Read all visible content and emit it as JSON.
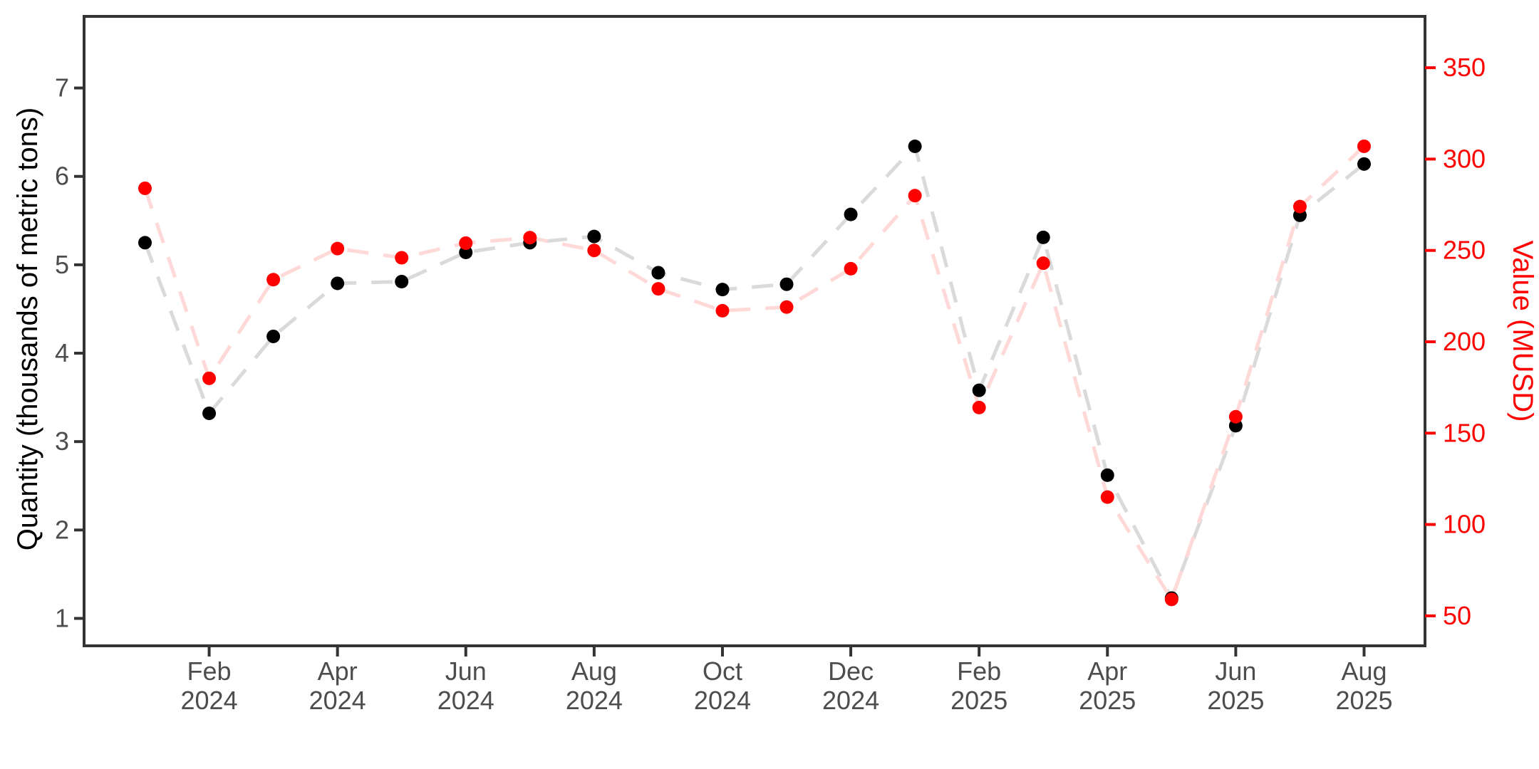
{
  "figure": {
    "background": "#FFFFFF",
    "panel_border_color": "#333333",
    "tick_mark_color": "#333333",
    "tick_label_color": "#4D4D4D"
  },
  "chart_data": {
    "type": "scatter",
    "title": "",
    "x": [
      "Jan 2024",
      "Feb 2024",
      "Mar 2024",
      "Apr 2024",
      "May 2024",
      "Jun 2024",
      "Jul 2024",
      "Aug 2024",
      "Sep 2024",
      "Oct 2024",
      "Nov 2024",
      "Dec 2024",
      "Jan 2025",
      "Feb 2025",
      "Mar 2025",
      "Apr 2025",
      "May 2025",
      "Jun 2025",
      "Jul 2025",
      "Aug 2025"
    ],
    "x_tick_labels": [
      {
        "line1": "Feb",
        "line2": "2024",
        "month_index": 1
      },
      {
        "line1": "Apr",
        "line2": "2024",
        "month_index": 3
      },
      {
        "line1": "Jun",
        "line2": "2024",
        "month_index": 5
      },
      {
        "line1": "Aug",
        "line2": "2024",
        "month_index": 7
      },
      {
        "line1": "Oct",
        "line2": "2024",
        "month_index": 9
      },
      {
        "line1": "Dec",
        "line2": "2024",
        "month_index": 11
      },
      {
        "line1": "Feb",
        "line2": "2025",
        "month_index": 13
      },
      {
        "line1": "Apr",
        "line2": "2025",
        "month_index": 15
      },
      {
        "line1": "Jun",
        "line2": "2025",
        "month_index": 17
      },
      {
        "line1": "Aug",
        "line2": "2025",
        "month_index": 19
      }
    ],
    "left_axis": {
      "label": "Quantity (thousands of metric tons)",
      "ticks": [
        1,
        2,
        3,
        4,
        5,
        6,
        7
      ],
      "range": [
        0.69,
        7.81
      ],
      "title_color": "#000000",
      "tick_label_color": "#4D4D4D",
      "tick_mark_color": "#333333"
    },
    "right_axis": {
      "label": "Value (MUSD)",
      "ticks": [
        50,
        100,
        150,
        200,
        250,
        300,
        350
      ],
      "range": [
        33.6,
        378.1
      ],
      "title_color": "#FF0000",
      "tick_label_color": "#FF0000",
      "tick_mark_color": "#FF0000"
    },
    "series": [
      {
        "name": "Quantity (thousands of metric tons)",
        "axis": "left",
        "point_color": "#000000",
        "line_color": "#DADADA",
        "values": [
          5.25,
          3.32,
          4.19,
          4.79,
          4.81,
          5.14,
          5.25,
          5.32,
          4.91,
          4.72,
          4.78,
          5.57,
          6.34,
          3.58,
          5.31,
          2.62,
          1.23,
          3.18,
          5.56,
          6.14
        ]
      },
      {
        "name": "Value (MUSD)",
        "axis": "right",
        "point_color": "#FF0000",
        "line_color": "#FFD9D7",
        "values": [
          284,
          180,
          234,
          251,
          246,
          254,
          257,
          250,
          229,
          217,
          219,
          240,
          280,
          164,
          243,
          115,
          59,
          159,
          274,
          307
        ]
      }
    ],
    "style": {
      "line_dash": "30 21",
      "line_width": 5,
      "point_radius": 9.5,
      "grid": false,
      "legend": "none"
    }
  }
}
